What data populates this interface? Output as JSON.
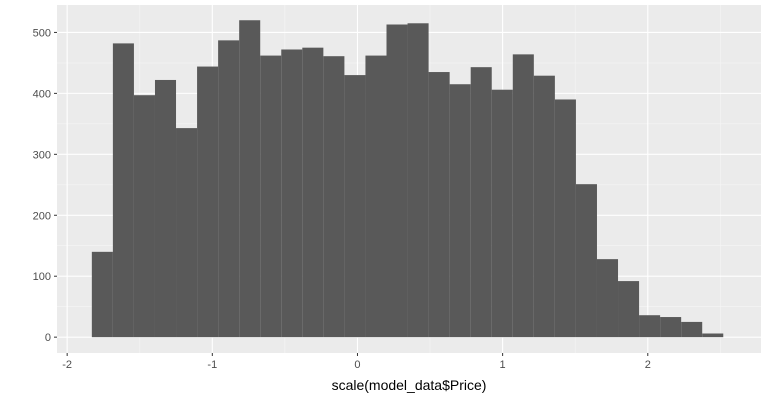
{
  "chart_data": {
    "type": "bar",
    "title": "",
    "xlabel": "scale(model_data$Price)",
    "ylabel": "",
    "bin_width": 0.145,
    "bins": [
      {
        "x0": -1.83,
        "count": 140
      },
      {
        "x0": -1.685,
        "count": 482
      },
      {
        "x0": -1.54,
        "count": 397
      },
      {
        "x0": -1.395,
        "count": 422
      },
      {
        "x0": -1.25,
        "count": 343
      },
      {
        "x0": -1.105,
        "count": 444
      },
      {
        "x0": -0.96,
        "count": 487
      },
      {
        "x0": -0.815,
        "count": 520
      },
      {
        "x0": -0.67,
        "count": 462
      },
      {
        "x0": -0.525,
        "count": 472
      },
      {
        "x0": -0.38,
        "count": 475
      },
      {
        "x0": -0.235,
        "count": 461
      },
      {
        "x0": -0.09,
        "count": 430
      },
      {
        "x0": 0.055,
        "count": 462
      },
      {
        "x0": 0.2,
        "count": 513
      },
      {
        "x0": 0.345,
        "count": 515
      },
      {
        "x0": 0.49,
        "count": 435
      },
      {
        "x0": 0.635,
        "count": 415
      },
      {
        "x0": 0.78,
        "count": 443
      },
      {
        "x0": 0.925,
        "count": 406
      },
      {
        "x0": 1.07,
        "count": 464
      },
      {
        "x0": 1.215,
        "count": 429
      },
      {
        "x0": 1.36,
        "count": 390
      },
      {
        "x0": 1.505,
        "count": 251
      },
      {
        "x0": 1.65,
        "count": 128
      },
      {
        "x0": 1.795,
        "count": 92
      },
      {
        "x0": 1.94,
        "count": 36
      },
      {
        "x0": 2.085,
        "count": 33
      },
      {
        "x0": 2.23,
        "count": 25
      },
      {
        "x0": 2.375,
        "count": 6
      }
    ],
    "xlim": [
      -2.07,
      2.78
    ],
    "ylim": [
      -26,
      545
    ],
    "x_ticks": [
      {
        "value": -2,
        "label": "-2"
      },
      {
        "value": -1,
        "label": "-1"
      },
      {
        "value": 0,
        "label": "0"
      },
      {
        "value": 1,
        "label": "1"
      },
      {
        "value": 2,
        "label": "2"
      }
    ],
    "y_ticks": [
      {
        "value": 0,
        "label": "0"
      },
      {
        "value": 100,
        "label": "100"
      },
      {
        "value": 200,
        "label": "200"
      },
      {
        "value": 300,
        "label": "300"
      },
      {
        "value": 400,
        "label": "400"
      },
      {
        "value": 500,
        "label": "500"
      }
    ],
    "x_minor": [
      -1.5,
      -0.5,
      0.5,
      1.5,
      2.5
    ],
    "y_minor": [
      50,
      150,
      250,
      350,
      450
    ],
    "grid": true,
    "legend": "none",
    "colors": {
      "panel": "#ebebeb",
      "grid_major": "#ffffff",
      "grid_minor": "#f5f5f5",
      "bar": "#595959",
      "tick": "#333333"
    }
  }
}
